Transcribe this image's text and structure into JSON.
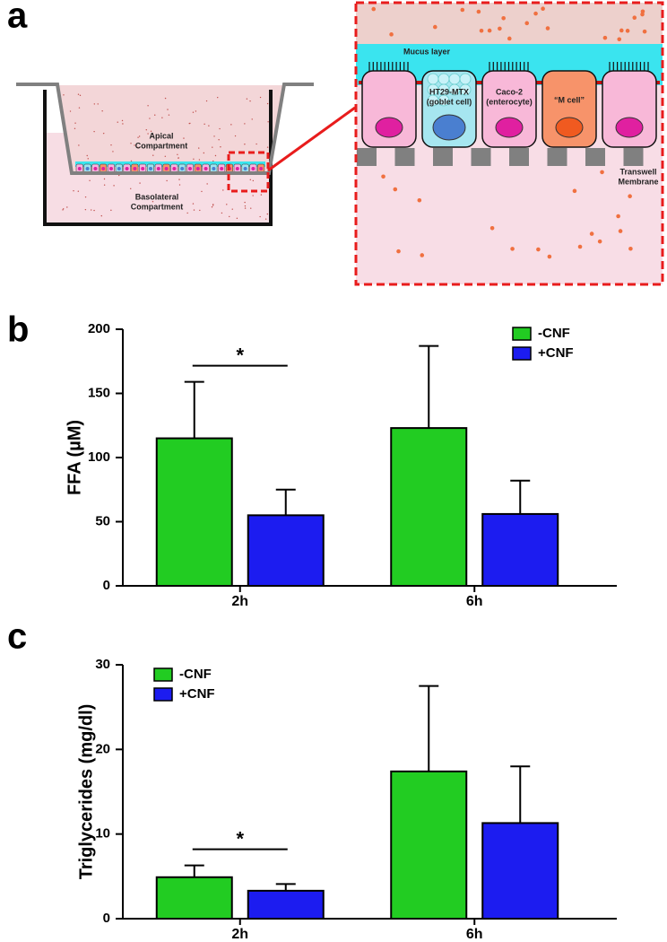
{
  "panel_labels": [
    "a",
    "b",
    "c"
  ],
  "diagram": {
    "apical": [
      "Apical",
      "Compartment"
    ],
    "basolateral": [
      "Basolateral",
      "Compartment"
    ],
    "mucus": "Mucus layer",
    "goblet": [
      "HT29-MTX",
      "(goblet cell)"
    ],
    "enterocyte": [
      "Caco-2",
      "(enterocyte)"
    ],
    "m_cell": "“M cell”",
    "membrane": [
      "Transwell",
      "Membrane"
    ]
  },
  "chart_data": [
    {
      "type": "bar",
      "ylabel": "FFA (µM)",
      "categories": [
        "2h",
        "6h"
      ],
      "series": [
        {
          "name": "-CNF",
          "color": "#22cc22",
          "values": [
            115,
            123
          ],
          "errors": [
            44,
            64
          ]
        },
        {
          "name": "+CNF",
          "color": "#1c1cf0",
          "values": [
            55,
            56
          ],
          "errors": [
            20,
            26
          ]
        }
      ],
      "ylim": [
        0,
        200
      ],
      "yticks": [
        0,
        50,
        100,
        150,
        200
      ],
      "legend": "upper right",
      "annotations": [
        {
          "text": "*"
        }
      ]
    },
    {
      "type": "bar",
      "ylabel": "Triglycerides (mg/dl)",
      "categories": [
        "2h",
        "6h"
      ],
      "series": [
        {
          "name": "-CNF",
          "color": "#22cc22",
          "values": [
            4.9,
            17.4
          ],
          "errors": [
            1.4,
            10.1
          ]
        },
        {
          "name": "+CNF",
          "color": "#1c1cf0",
          "values": [
            3.3,
            11.3
          ],
          "errors": [
            0.8,
            6.7
          ]
        }
      ],
      "ylim": [
        0,
        30
      ],
      "yticks": [
        0,
        10,
        20,
        30
      ],
      "legend": "upper left",
      "annotations": [
        {
          "text": "*"
        }
      ]
    }
  ]
}
